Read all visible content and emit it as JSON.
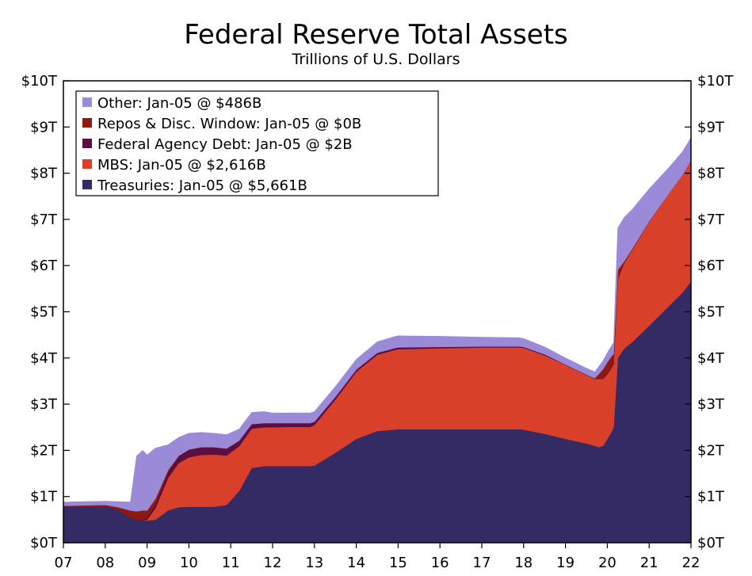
{
  "chart_data": {
    "type": "area",
    "title": "Federal Reserve Total Assets",
    "subtitle": "Trillions of U.S. Dollars",
    "x_ticks": [
      "07",
      "08",
      "09",
      "10",
      "11",
      "12",
      "13",
      "14",
      "15",
      "16",
      "17",
      "18",
      "19",
      "20",
      "21",
      "22"
    ],
    "y_ticks": [
      "$0T",
      "$1T",
      "$2T",
      "$3T",
      "$4T",
      "$5T",
      "$6T",
      "$7T",
      "$8T",
      "$9T",
      "$10T"
    ],
    "ylim": [
      0,
      10
    ],
    "xlim": [
      2007,
      2022
    ],
    "grid": false,
    "legend_position": "top-left",
    "x": [
      2007.0,
      2007.5,
      2008.0,
      2008.3,
      2008.6,
      2008.75,
      2008.9,
      2009.0,
      2009.2,
      2009.5,
      2009.75,
      2010.0,
      2010.3,
      2010.6,
      2010.9,
      2011.2,
      2011.5,
      2011.8,
      2012.0,
      2012.5,
      2012.9,
      2013.0,
      2013.5,
      2014.0,
      2014.5,
      2014.9,
      2015.0,
      2016.0,
      2017.0,
      2017.9,
      2018.0,
      2018.5,
      2019.0,
      2019.5,
      2019.7,
      2019.8,
      2019.9,
      2020.0,
      2020.1,
      2020.15,
      2020.25,
      2020.4,
      2020.6,
      2021.0,
      2021.5,
      2021.8,
      2022.0
    ],
    "series": [
      {
        "name": "Treasuries",
        "values": [
          0.78,
          0.79,
          0.79,
          0.72,
          0.55,
          0.49,
          0.48,
          0.48,
          0.5,
          0.7,
          0.77,
          0.78,
          0.78,
          0.78,
          0.82,
          1.12,
          1.62,
          1.66,
          1.66,
          1.66,
          1.66,
          1.67,
          1.95,
          2.25,
          2.42,
          2.45,
          2.46,
          2.46,
          2.46,
          2.46,
          2.45,
          2.36,
          2.25,
          2.15,
          2.1,
          2.07,
          2.1,
          2.25,
          2.4,
          2.5,
          4.0,
          4.2,
          4.35,
          4.7,
          5.15,
          5.42,
          5.66
        ],
        "color": "#342a64"
      },
      {
        "name": "MBS",
        "values": [
          0,
          0,
          0,
          0,
          0,
          0,
          0,
          0.02,
          0.25,
          0.7,
          0.95,
          1.07,
          1.12,
          1.13,
          1.07,
          0.97,
          0.85,
          0.84,
          0.84,
          0.85,
          0.85,
          0.88,
          1.15,
          1.45,
          1.65,
          1.72,
          1.73,
          1.75,
          1.77,
          1.77,
          1.77,
          1.7,
          1.6,
          1.48,
          1.45,
          1.48,
          1.45,
          1.4,
          1.38,
          1.37,
          1.7,
          1.85,
          2.0,
          2.25,
          2.45,
          2.55,
          2.62
        ],
        "color": "#d8402a"
      },
      {
        "name": "Federal Agency Debt",
        "values": [
          0,
          0,
          0,
          0,
          0,
          0.01,
          0.02,
          0.04,
          0.08,
          0.12,
          0.14,
          0.16,
          0.17,
          0.16,
          0.15,
          0.12,
          0.1,
          0.09,
          0.09,
          0.08,
          0.08,
          0.07,
          0.06,
          0.05,
          0.04,
          0.04,
          0.04,
          0.03,
          0.02,
          0.02,
          0.02,
          0.02,
          0.01,
          0.01,
          0.01,
          0.01,
          0.01,
          0.01,
          0.01,
          0.01,
          0.01,
          0.01,
          0.01,
          0.01,
          0.0,
          0.0,
          0.0
        ],
        "color": "#5c0e40"
      },
      {
        "name": "Repos & Disc. Window",
        "values": [
          0.02,
          0.02,
          0.03,
          0.05,
          0.15,
          0.18,
          0.2,
          0.16,
          0.12,
          0.05,
          0.02,
          0.01,
          0.0,
          0.0,
          0.0,
          0.0,
          0.0,
          0.0,
          0.0,
          0.0,
          0.0,
          0.0,
          0.0,
          0.0,
          0.0,
          0.0,
          0.0,
          0.0,
          0.0,
          0.0,
          0.0,
          0.0,
          0.0,
          0.0,
          0.0,
          0.1,
          0.2,
          0.25,
          0.25,
          0.2,
          0.2,
          0.03,
          0.01,
          0.0,
          0.0,
          0.0,
          0.0
        ],
        "color": "#8c1a10"
      },
      {
        "name": "Other",
        "values": [
          0.08,
          0.08,
          0.08,
          0.12,
          0.18,
          1.2,
          1.3,
          1.2,
          1.1,
          0.55,
          0.4,
          0.35,
          0.32,
          0.3,
          0.3,
          0.25,
          0.25,
          0.25,
          0.22,
          0.22,
          0.22,
          0.22,
          0.22,
          0.22,
          0.24,
          0.25,
          0.25,
          0.23,
          0.2,
          0.19,
          0.18,
          0.16,
          0.14,
          0.14,
          0.14,
          0.16,
          0.18,
          0.2,
          0.22,
          0.25,
          0.9,
          0.95,
          0.85,
          0.7,
          0.55,
          0.5,
          0.49
        ],
        "color": "#9b8ad8"
      }
    ],
    "legend": [
      {
        "label": "Other: Jan-05 @ $486B",
        "color": "#9b8ad8"
      },
      {
        "label": "Repos & Disc. Window: Jan-05 @ $0B",
        "color": "#8c1a10"
      },
      {
        "label": "Federal Agency Debt: Jan-05 @ $2B",
        "color": "#5c0e40"
      },
      {
        "label": "MBS: Jan-05 @ $2,616B",
        "color": "#d8402a"
      },
      {
        "label": "Treasuries: Jan-05 @ $5,661B",
        "color": "#342a64"
      }
    ]
  }
}
